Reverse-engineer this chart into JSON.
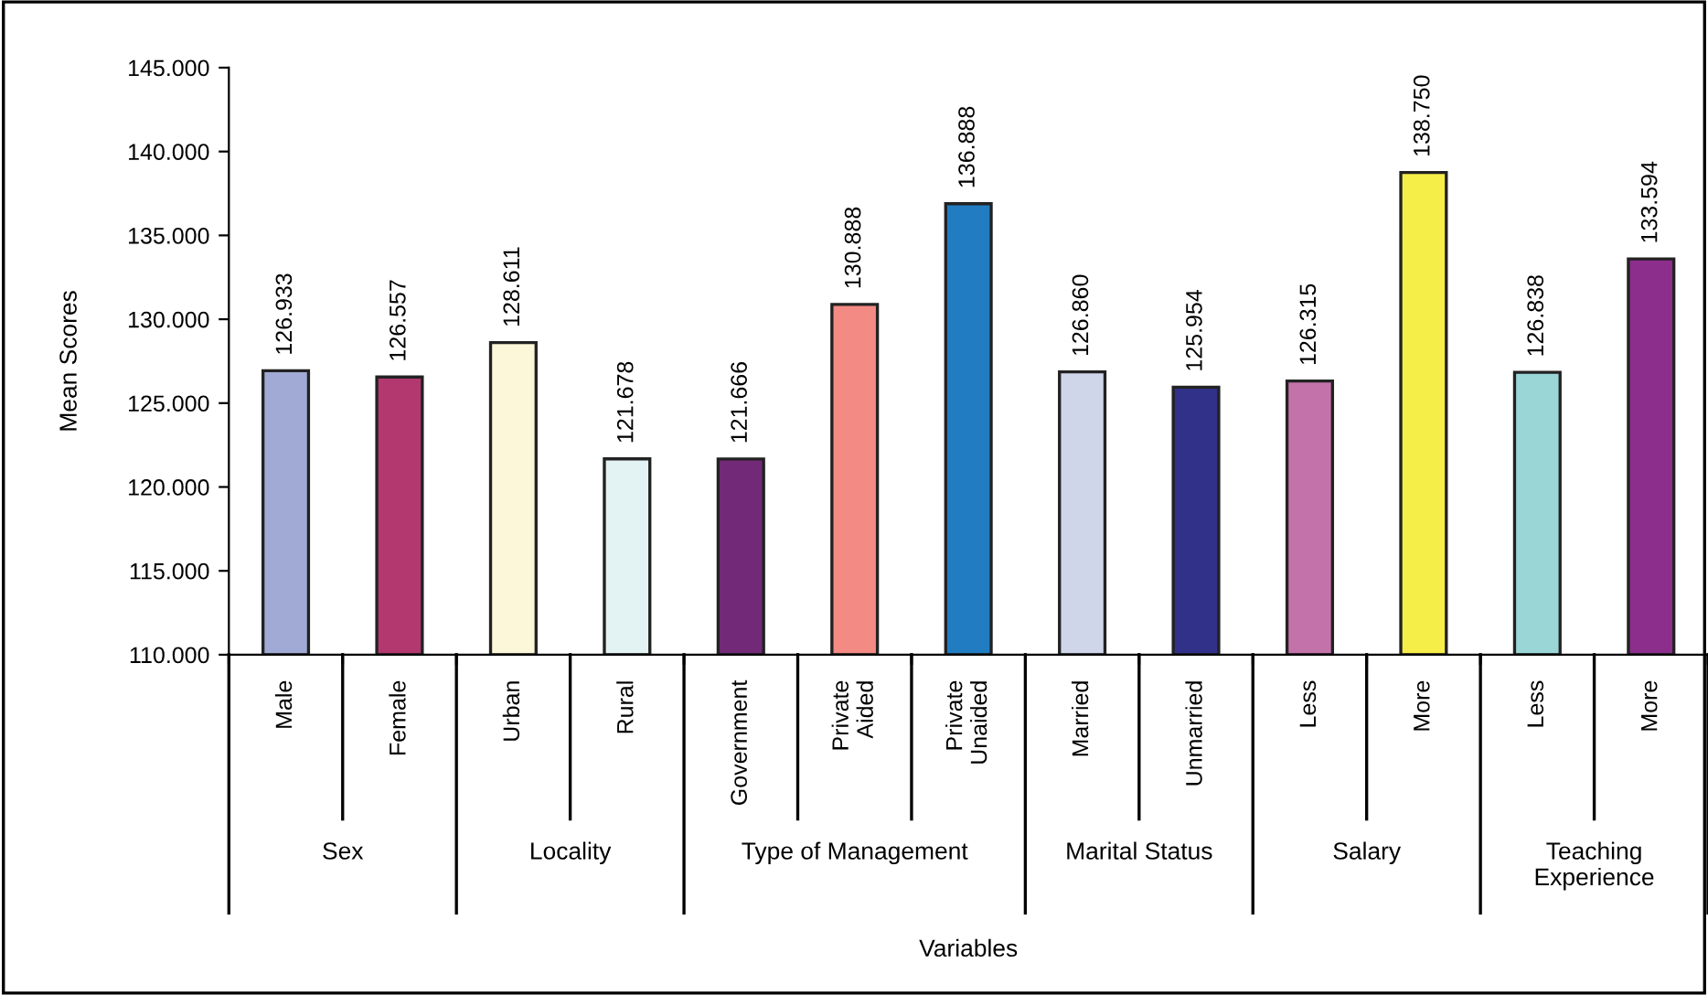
{
  "chart_data": {
    "type": "bar",
    "ylabel": "Mean Scores",
    "categories": [
      "Male",
      "Female",
      "Urban",
      "Rural",
      "Government",
      "Private\nAided",
      "Private\nUnaided",
      "Married",
      "Unmarried",
      "Less",
      "More",
      "Less",
      "More"
    ],
    "values": [
      126.933,
      126.557,
      128.611,
      121.678,
      121.666,
      130.888,
      136.888,
      126.86,
      125.954,
      126.315,
      138.75,
      126.838,
      133.594
    ],
    "value_labels": [
      "126.933",
      "126.557",
      "128.611",
      "121.678",
      "121.666",
      "130.888",
      "136.888",
      "126.860",
      "125.954",
      "126.315",
      "138.750",
      "126.838",
      "133.594"
    ],
    "colors": [
      "#a0aad4",
      "#b43870",
      "#fbf7d8",
      "#e3f2f2",
      "#722a78",
      "#f48a84",
      "#227cc1",
      "#d0d6ea",
      "#31318a",
      "#c472aa",
      "#f5ed48",
      "#9ad6d6",
      "#8c2e8c"
    ],
    "ylim": [
      110,
      145
    ],
    "yticks": [
      {
        "value": 110,
        "label": "110.000"
      },
      {
        "value": 115,
        "label": "115.000"
      },
      {
        "value": 120,
        "label": "120.000"
      },
      {
        "value": 125,
        "label": "125.000"
      },
      {
        "value": 130,
        "label": "130.000"
      },
      {
        "value": 135,
        "label": "135.000"
      },
      {
        "value": 140,
        "label": "140.000"
      },
      {
        "value": 145,
        "label": "145.000"
      }
    ],
    "annotations": [
      "Sex",
      "Locality",
      "Type of Management",
      "Marital Status",
      "Salary",
      "Teaching\nExperience",
      "Variables"
    ],
    "grid": false,
    "legend": false
  }
}
